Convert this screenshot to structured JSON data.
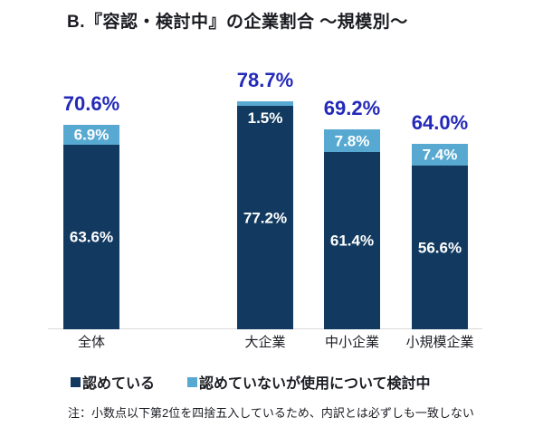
{
  "title": "B.『容認・検討中』の企業割合 ～規模別～",
  "note": "注：小数点以下第2位を四捨五入しているため、内訳とは必ずしも一致しない",
  "legend": {
    "items": [
      {
        "label": "認めている",
        "color": "#123a60"
      },
      {
        "label": "認めていないが使用について検討中",
        "color": "#58a9d1"
      }
    ]
  },
  "colors": {
    "accepted_segment": "#123a60",
    "considering_segment": "#58a9d1",
    "total_label": "#2329b8",
    "segment_label": "#ffffff",
    "text": "#1b1c22",
    "axis_line": "#d9d9d9",
    "background": "#ffffff"
  },
  "chart_data": {
    "type": "bar",
    "stacked": true,
    "unit": "%",
    "title": "B.『容認・検討中』の企業割合 ～規模別～",
    "categories": [
      "全体",
      "大企業",
      "中小企業",
      "小規模企業"
    ],
    "series": [
      {
        "name": "認めている",
        "values": [
          63.6,
          77.2,
          61.4,
          56.6
        ]
      },
      {
        "name": "認めていないが使用について検討中",
        "values": [
          6.9,
          1.5,
          7.8,
          7.4
        ]
      }
    ],
    "totals": [
      70.6,
      78.7,
      69.2,
      64.0
    ],
    "ylim": [
      0,
      100
    ],
    "grid": false,
    "legend_position": "bottom",
    "value_label_format": "one_decimal_percent"
  }
}
